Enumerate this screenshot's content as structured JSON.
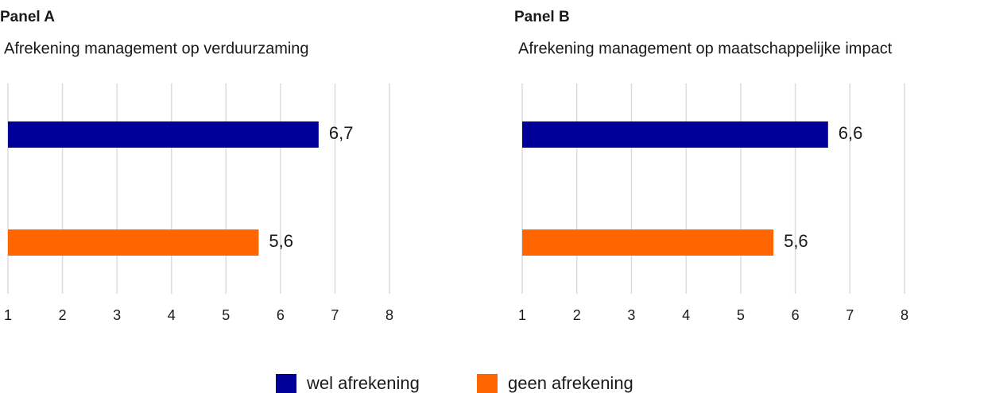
{
  "chart_data": [
    {
      "type": "bar",
      "orientation": "horizontal",
      "title": "Panel A",
      "subtitle": "Afrekening management op verduurzaming",
      "series": [
        {
          "values": [
            6.7
          ],
          "value_labels": [
            "6,7"
          ]
        },
        {
          "values": [
            5.6
          ],
          "value_labels": [
            "5,6"
          ]
        }
      ],
      "xlim": [
        1,
        8
      ],
      "xticks": [
        1,
        2,
        3,
        4,
        5,
        6,
        7,
        8
      ],
      "grid": true
    },
    {
      "type": "bar",
      "orientation": "horizontal",
      "title": "Panel B",
      "subtitle": "Afrekening management op maatschappelijke impact",
      "series": [
        {
          "values": [
            6.6
          ],
          "value_labels": [
            "6,6"
          ]
        },
        {
          "values": [
            5.6
          ],
          "value_labels": [
            "5,6"
          ]
        }
      ],
      "xlim": [
        1,
        8
      ],
      "xticks": [
        1,
        2,
        3,
        4,
        5,
        6,
        7,
        8
      ],
      "grid": true
    }
  ],
  "legend": [
    {
      "name": "wel afrekening",
      "color": "#000099"
    },
    {
      "name": "geen afrekening",
      "color": "#ff6600"
    }
  ]
}
